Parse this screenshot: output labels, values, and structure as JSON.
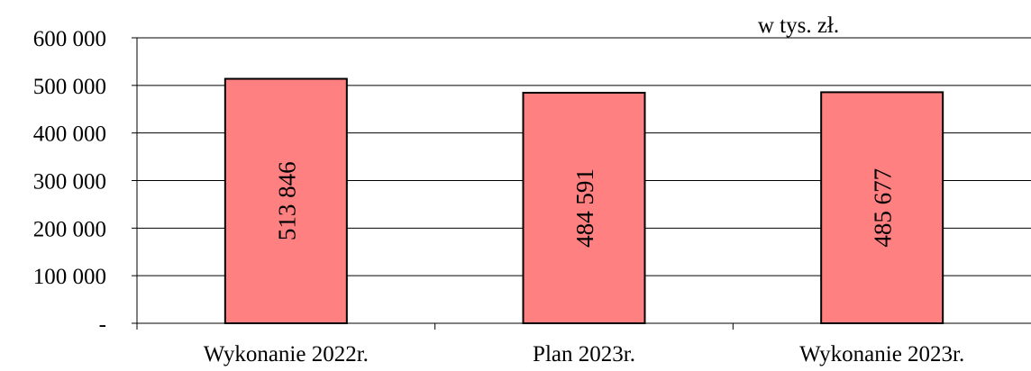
{
  "chart_data": {
    "type": "bar",
    "unit_label": "w tys. zł.",
    "categories": [
      "Wykonanie 2022r.",
      "Plan 2023r.",
      "Wykonanie 2023r."
    ],
    "values": [
      513846,
      484591,
      485677
    ],
    "value_labels": [
      "513 846",
      "484 591",
      "485 677"
    ],
    "ylim": [
      0,
      600000
    ],
    "yticks": [
      {
        "value": 0,
        "label": "-"
      },
      {
        "value": 100000,
        "label": "100 000"
      },
      {
        "value": 200000,
        "label": "200 000"
      },
      {
        "value": 300000,
        "label": "300 000"
      },
      {
        "value": 400000,
        "label": "400 000"
      },
      {
        "value": 500000,
        "label": "500 000"
      },
      {
        "value": 600000,
        "label": "600 000"
      }
    ],
    "grid": true,
    "bar_color": "#FF8080",
    "bar_border_color": "#000000",
    "xlabel": "",
    "ylabel": ""
  }
}
